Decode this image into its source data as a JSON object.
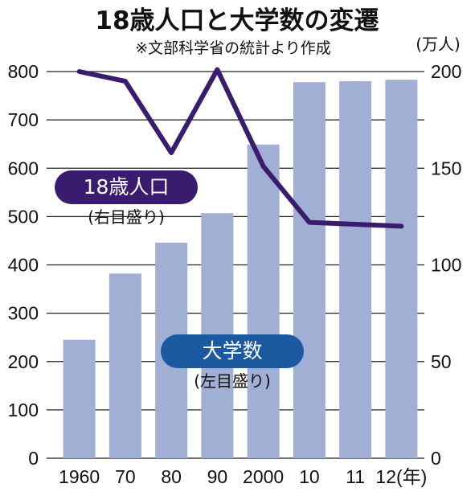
{
  "chart_data": {
    "type": "bar+line",
    "title": "18歳人口と大学数の変遷",
    "subtitle": "※文部科学省の統計より作成",
    "categories": [
      "1960",
      "70",
      "80",
      "90",
      "2000",
      "10",
      "11",
      "12(年)"
    ],
    "bars": {
      "label": "大学数",
      "sublabel": "(左目盛り)",
      "values": [
        245,
        382,
        446,
        507,
        649,
        778,
        780,
        783
      ],
      "color": "#a2afd5"
    },
    "line": {
      "label": "18歳人口",
      "sublabel": "(右目盛り)",
      "values": [
        200,
        195,
        158,
        201,
        151,
        122,
        121,
        120
      ],
      "color": "#3a1c6e"
    },
    "y_left": {
      "min": 0,
      "max": 800,
      "ticks": [
        "0",
        "100",
        "200",
        "300",
        "400",
        "500",
        "600",
        "700",
        "800"
      ]
    },
    "y_right": {
      "min": 0,
      "max": 200,
      "unit": "(万人)",
      "ticks": [
        "0",
        "50",
        "100",
        "150",
        "200"
      ]
    },
    "grid": true,
    "label_box_colors": {
      "line": "#3a1c6e",
      "bars": "#1b5aa0"
    }
  }
}
